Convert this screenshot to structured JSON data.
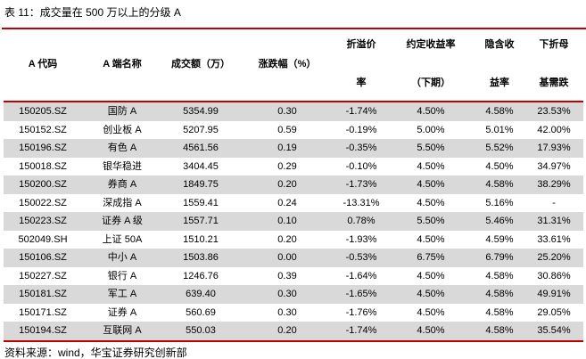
{
  "title": "表 11：成交量在 500 万以上的分级 A",
  "footer": {
    "source": "资料来源：wind，华宝证券研究创新部"
  },
  "colors": {
    "accent_red": "#c00000",
    "row_alt_gray": "#d9d9d9",
    "text": "#000000",
    "background": "#ffffff"
  },
  "table": {
    "columns": [
      {
        "top": "",
        "middle": "A 代码",
        "bottom": ""
      },
      {
        "top": "",
        "middle": "A 端名称",
        "bottom": ""
      },
      {
        "top": "",
        "middle": "成交额（万）",
        "bottom": ""
      },
      {
        "top": "",
        "middle": "涨跌幅（%）",
        "bottom": ""
      },
      {
        "top": "折溢价",
        "middle": "",
        "bottom": "率"
      },
      {
        "top": "约定收益率",
        "middle": "",
        "bottom": "（下期）"
      },
      {
        "top": "隐含收",
        "middle": "",
        "bottom": "益率"
      },
      {
        "top": "下折母",
        "middle": "",
        "bottom": "基需跌"
      }
    ],
    "rows": [
      [
        "150205.SZ",
        "国防 A",
        "5354.99",
        "0.30",
        "-1.74%",
        "4.50%",
        "4.58%",
        "23.53%"
      ],
      [
        "150152.SZ",
        "创业板 A",
        "5207.95",
        "0.59",
        "-0.19%",
        "5.00%",
        "5.01%",
        "42.00%"
      ],
      [
        "150196.SZ",
        "有色 A",
        "4561.56",
        "0.19",
        "-0.35%",
        "5.50%",
        "5.52%",
        "17.93%"
      ],
      [
        "150018.SZ",
        "银华稳进",
        "3404.45",
        "0.29",
        "-0.10%",
        "4.50%",
        "4.50%",
        "34.97%"
      ],
      [
        "150200.SZ",
        "券商 A",
        "1849.75",
        "0.20",
        "-1.73%",
        "4.50%",
        "4.58%",
        "38.29%"
      ],
      [
        "150022.SZ",
        "深成指 A",
        "1559.41",
        "0.24",
        "-13.31%",
        "4.50%",
        "5.16%",
        "-"
      ],
      [
        "150223.SZ",
        "证券 A 级",
        "1557.71",
        "0.10",
        "0.78%",
        "5.50%",
        "5.46%",
        "31.31%"
      ],
      [
        "502049.SH",
        "上证 50A",
        "1510.21",
        "0.20",
        "-1.93%",
        "4.50%",
        "4.59%",
        "33.61%"
      ],
      [
        "150106.SZ",
        "中小 A",
        "1503.86",
        "0.00",
        "-0.53%",
        "6.75%",
        "6.79%",
        "25.20%"
      ],
      [
        "150227.SZ",
        "银行 A",
        "1246.76",
        "0.39",
        "-1.64%",
        "4.50%",
        "4.58%",
        "30.86%"
      ],
      [
        "150181.SZ",
        "军工 A",
        "639.40",
        "0.30",
        "-1.65%",
        "4.50%",
        "4.58%",
        "49.91%"
      ],
      [
        "150171.SZ",
        "证券 A",
        "560.69",
        "0.30",
        "-1.76%",
        "4.50%",
        "4.58%",
        "29.05%"
      ],
      [
        "150194.SZ",
        "互联网 A",
        "550.03",
        "0.20",
        "-1.74%",
        "4.50%",
        "4.58%",
        "35.54%"
      ]
    ]
  }
}
